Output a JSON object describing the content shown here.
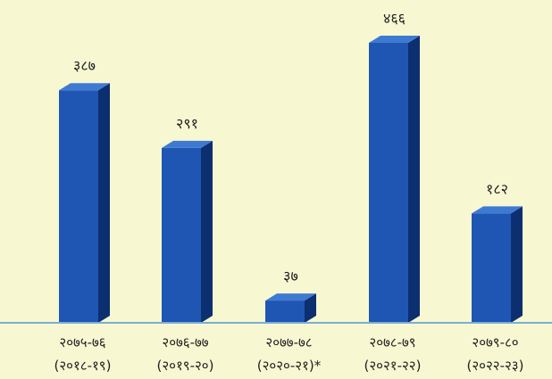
{
  "chart_data": {
    "type": "bar",
    "categories": [
      [
        "२०७५-७६",
        "(२०१८-१९)"
      ],
      [
        "२०७६-७७",
        "(२०१९-२०)"
      ],
      [
        "२०७७-७८",
        "(२०२०-२१)*"
      ],
      [
        "२०७८-७९",
        "(२०२१-२२)"
      ],
      [
        "२०७९-८०",
        "(२०२२-२३)"
      ]
    ],
    "values": [
      387,
      291,
      37,
      466,
      182
    ],
    "value_labels": [
      "३८७",
      "२९१",
      "३७",
      "४६६",
      "१८२"
    ],
    "title": "",
    "xlabel": "",
    "ylabel": "",
    "ylim": [
      0,
      466
    ],
    "grid": false,
    "legend": "none",
    "colors": {
      "bar_front": "#1f56b3",
      "bar_side": "#0c2f70",
      "bar_top": "#3f7ad2",
      "baseline": "#7aaed6",
      "background": "#f7f8d2"
    }
  }
}
